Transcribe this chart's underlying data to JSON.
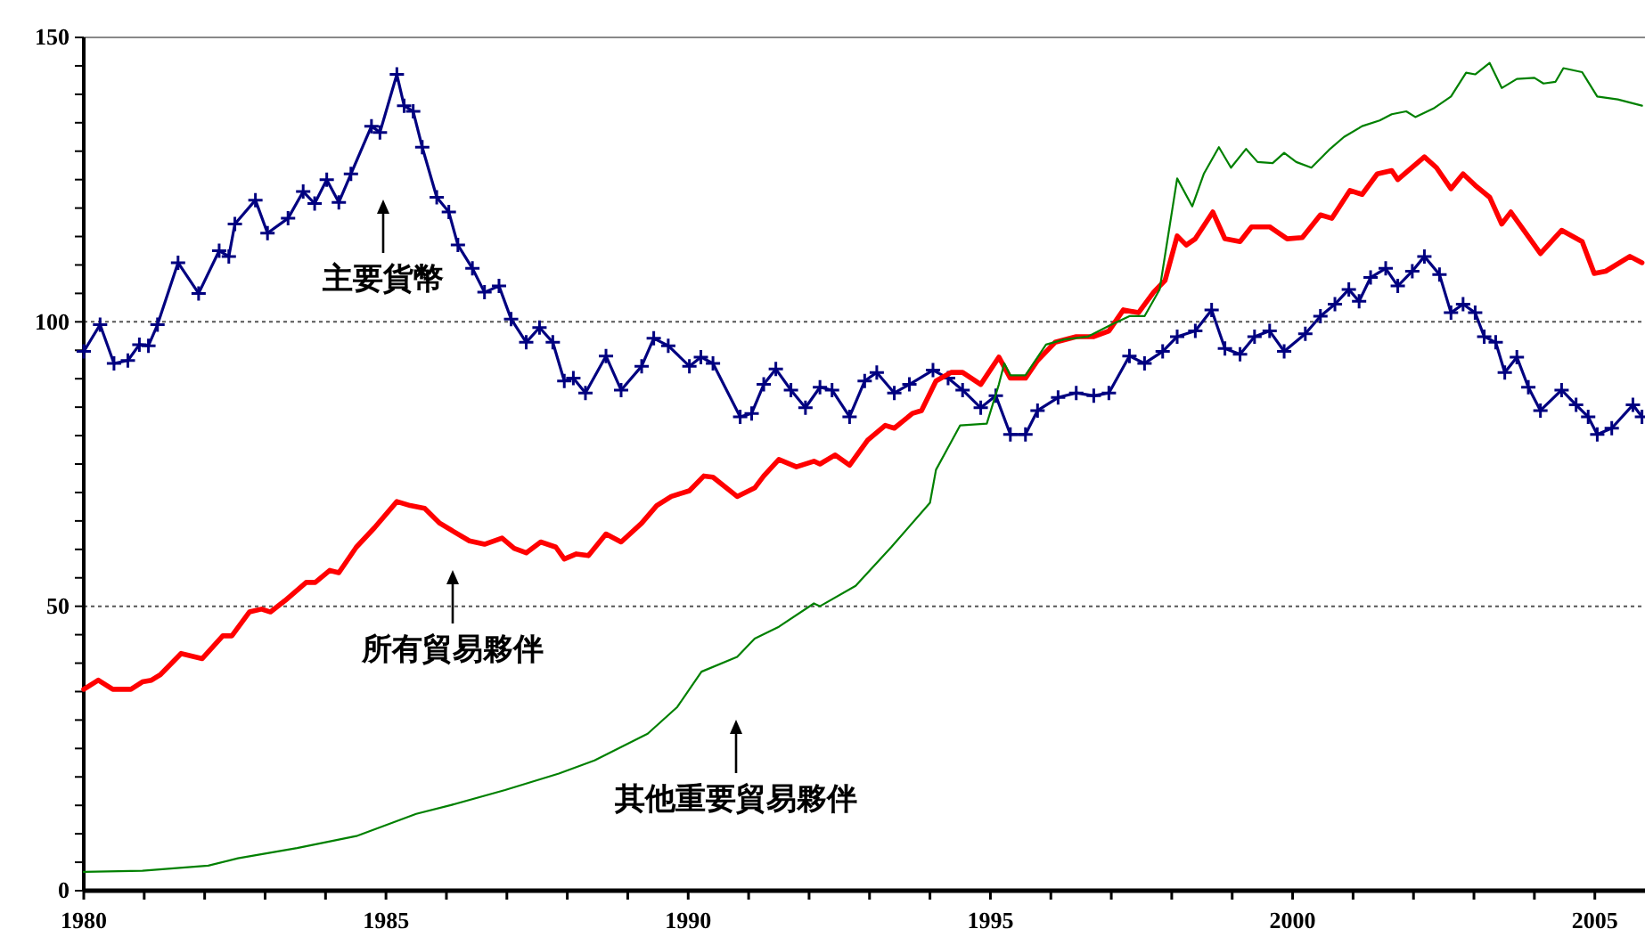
{
  "chart_data": {
    "type": "line",
    "xlim": [
      1980,
      2005.83
    ],
    "xticks": [
      1980,
      {
        "value": 1981,
        "label": null
      },
      {
        "value": 1982,
        "label": null
      },
      {
        "value": 1983,
        "label": null
      },
      {
        "value": 1984,
        "label": null
      },
      1985,
      {
        "value": 1986,
        "label": null
      },
      {
        "value": 1987,
        "label": null
      },
      {
        "value": 1988,
        "label": null
      },
      {
        "value": 1989,
        "label": null
      },
      1990,
      {
        "value": 1991,
        "label": null
      },
      {
        "value": 1992,
        "label": null
      },
      {
        "value": 1993,
        "label": null
      },
      {
        "value": 1994,
        "label": null
      },
      1995,
      {
        "value": 1996,
        "label": null
      },
      {
        "value": 1997,
        "label": null
      },
      {
        "value": 1998,
        "label": null
      },
      {
        "value": 1999,
        "label": null
      },
      2000,
      {
        "value": 2001,
        "label": null
      },
      {
        "value": 2002,
        "label": null
      },
      {
        "value": 2003,
        "label": null
      },
      {
        "value": 2004,
        "label": null
      },
      2005
    ],
    "ylim": [
      0,
      150
    ],
    "yticks": [
      0,
      {
        "value": 5,
        "label": null
      },
      {
        "value": 10,
        "label": null
      },
      {
        "value": 15,
        "label": null
      },
      {
        "value": 20,
        "label": null
      },
      {
        "value": 25,
        "label": null
      },
      {
        "value": 30,
        "label": null
      },
      {
        "value": 35,
        "label": null
      },
      {
        "value": 40,
        "label": null
      },
      {
        "value": 45,
        "label": null
      },
      50,
      {
        "value": 55,
        "label": null
      },
      {
        "value": 60,
        "label": null
      },
      {
        "value": 65,
        "label": null
      },
      {
        "value": 70,
        "label": null
      },
      {
        "value": 75,
        "label": null
      },
      {
        "value": 80,
        "label": null
      },
      {
        "value": 85,
        "label": null
      },
      {
        "value": 90,
        "label": null
      },
      {
        "value": 95,
        "label": null
      },
      100,
      {
        "value": 105,
        "label": null
      },
      {
        "value": 110,
        "label": null
      },
      {
        "value": 115,
        "label": null
      },
      {
        "value": 120,
        "label": null
      },
      {
        "value": 125,
        "label": null
      },
      {
        "value": 130,
        "label": null
      },
      {
        "value": 135,
        "label": null
      },
      {
        "value": 140,
        "label": null
      },
      {
        "value": 145,
        "label": null
      },
      150
    ],
    "grid": false,
    "ref_lines": [
      {
        "axis": "y",
        "value": 50,
        "line_style": "dotted",
        "color": "#555555"
      },
      {
        "axis": "y",
        "value": 100,
        "line_style": "dotted",
        "color": "#555555"
      }
    ],
    "series": [
      {
        "name": "主要貨幣",
        "color": "#000080",
        "marker": "cross",
        "x": [
          1980,
          1980.27,
          1980.5,
          1980.73,
          1980.92,
          1981.07,
          1981.22,
          1981.56,
          1981.9,
          1982.24,
          1982.4,
          1982.5,
          1982.84,
          1983.04,
          1983.38,
          1983.63,
          1983.82,
          1984.02,
          1984.22,
          1984.42,
          1984.76,
          1984.9,
          1985.18,
          1985.3,
          1985.45,
          1985.6,
          1985.84,
          1986.04,
          1986.19,
          1986.43,
          1986.63,
          1986.87,
          1987.07,
          1987.32,
          1987.54,
          1987.76,
          1987.95,
          1988.1,
          1988.3,
          1988.64,
          1988.89,
          1989.23,
          1989.43,
          1989.67,
          1990.02,
          1990.21,
          1990.41,
          1990.86,
          1991.05,
          1991.25,
          1991.45,
          1991.7,
          1991.94,
          1992.18,
          1992.38,
          1992.67,
          1992.92,
          1993.12,
          1993.41,
          1993.66,
          1994.05,
          1994.3,
          1994.54,
          1994.84,
          1995.09,
          1995.33,
          1995.58,
          1995.78,
          1996.12,
          1996.42,
          1996.71,
          1996.96,
          1997.3,
          1997.55,
          1997.85,
          1998.09,
          1998.39,
          1998.66,
          1998.88,
          1999.13,
          1999.37,
          1999.62,
          1999.86,
          2000.21,
          2000.46,
          2000.7,
          2000.93,
          2001.1,
          2001.29,
          2001.54,
          2001.74,
          2001.98,
          2002.18,
          2002.43,
          2002.62,
          2002.82,
          2003.02,
          2003.17,
          2003.36,
          2003.51,
          2003.71,
          2003.9,
          2004.1,
          2004.45,
          2004.69,
          2004.89,
          2005.04,
          2005.28,
          2005.63,
          2005.78
        ],
        "values": [
          94.8,
          99.5,
          92.7,
          93.2,
          96,
          95.8,
          99.5,
          110.4,
          105,
          112.5,
          111.5,
          117.2,
          121.4,
          115.6,
          118.2,
          122.9,
          120.8,
          125,
          121,
          126,
          134.4,
          133.3,
          143.5,
          138,
          137,
          130.7,
          121.9,
          119.3,
          113.5,
          109.4,
          105.2,
          106.3,
          100.5,
          96.4,
          99,
          96.4,
          89.6,
          90.1,
          87.5,
          94,
          88,
          92.2,
          97.1,
          95.8,
          92.2,
          93.8,
          92.7,
          83.3,
          83.9,
          89,
          91.7,
          88,
          84.9,
          88.5,
          88,
          83.3,
          89.6,
          91.1,
          87.5,
          89,
          91.5,
          90.1,
          88,
          84.9,
          87,
          80.2,
          80.2,
          84.4,
          86.7,
          87.5,
          87,
          87.5,
          94,
          92.7,
          94.8,
          97.4,
          98.4,
          102.1,
          95.3,
          94.3,
          97.4,
          98.4,
          94.8,
          97.9,
          101,
          103.1,
          105.7,
          103.6,
          107.8,
          109.4,
          106.3,
          108.9,
          111.5,
          108.3,
          101.6,
          103.1,
          101.6,
          97.4,
          96.4,
          91.1,
          93.8,
          88.5,
          84.4,
          88,
          85.4,
          83.3,
          80.2,
          81.3,
          85.4,
          83.3
        ]
      },
      {
        "name": "所有貿易夥伴",
        "color": "#ff0000",
        "marker": "none",
        "x": [
          1980,
          1980.24,
          1980.48,
          1980.78,
          1980.97,
          1981.12,
          1981.27,
          1981.61,
          1981.96,
          1982.3,
          1982.45,
          1982.74,
          1982.94,
          1983.09,
          1983.33,
          1983.68,
          1983.83,
          1984.07,
          1984.22,
          1984.51,
          1984.81,
          1985.18,
          1985.4,
          1985.64,
          1985.89,
          1986.14,
          1986.38,
          1986.63,
          1986.92,
          1987.12,
          1987.32,
          1987.56,
          1987.81,
          1987.95,
          1988.15,
          1988.35,
          1988.64,
          1988.89,
          1989.23,
          1989.48,
          1989.72,
          1990.02,
          1990.26,
          1990.41,
          1990.81,
          1991.1,
          1991.25,
          1991.5,
          1991.79,
          1992.08,
          1992.18,
          1992.43,
          1992.67,
          1992.97,
          1993.26,
          1993.41,
          1993.71,
          1993.86,
          1994.1,
          1994.35,
          1994.54,
          1994.84,
          1995.14,
          1995.33,
          1995.58,
          1995.78,
          1996.07,
          1996.42,
          1996.71,
          1996.96,
          1997.2,
          1997.45,
          1997.7,
          1997.89,
          1998.09,
          1998.24,
          1998.39,
          1998.68,
          1998.88,
          1999.13,
          1999.32,
          1999.62,
          1999.91,
          2000.16,
          2000.46,
          2000.65,
          2000.95,
          2001.15,
          2001.4,
          2001.64,
          2001.74,
          2002.18,
          2002.38,
          2002.62,
          2002.82,
          2003.02,
          2003.26,
          2003.46,
          2003.61,
          2004.1,
          2004.45,
          2004.79,
          2004.99,
          2005.18,
          2005.58,
          2005.78
        ],
        "values": [
          35.4,
          37,
          35.4,
          35.4,
          36.7,
          37,
          38,
          41.7,
          40.8,
          44.8,
          44.8,
          49,
          49.5,
          49,
          51,
          54.2,
          54.2,
          56.3,
          55.9,
          60.4,
          63.8,
          68.4,
          67.7,
          67.2,
          64.6,
          63,
          61.5,
          60.9,
          62,
          60.2,
          59.4,
          61.3,
          60.4,
          58.3,
          59.2,
          58.9,
          62.7,
          61.3,
          64.6,
          67.7,
          69.3,
          70.3,
          72.9,
          72.7,
          69.3,
          70.8,
          72.9,
          75.8,
          74.5,
          75.5,
          75,
          76.6,
          74.8,
          79.2,
          81.8,
          81.3,
          83.9,
          84.4,
          89.6,
          91.1,
          91.1,
          89,
          93.8,
          90.1,
          90.1,
          93.2,
          96.4,
          97.4,
          97.4,
          98.4,
          102.1,
          101.6,
          105.2,
          107.3,
          115.1,
          113.5,
          114.6,
          119.3,
          114.6,
          114.1,
          116.7,
          116.7,
          114.6,
          114.8,
          118.8,
          118.2,
          123.1,
          122.4,
          126,
          126.6,
          125,
          129,
          127.1,
          123.4,
          126,
          124,
          121.9,
          117.2,
          119.3,
          112,
          116.1,
          114.1,
          108.5,
          108.9,
          111.5,
          110.4
        ]
      },
      {
        "name": "其他重要貿易夥伴",
        "color": "#008000",
        "marker": "none",
        "x": [
          1980,
          1980.97,
          1982.06,
          1982.55,
          1983.53,
          1984.51,
          1985.5,
          1986.09,
          1986.97,
          1987.86,
          1988.45,
          1989.33,
          1989.82,
          1990.22,
          1990.81,
          1991.1,
          1991.5,
          1992.08,
          1992.18,
          1992.77,
          1993.36,
          1994,
          1994.1,
          1994.5,
          1994.94,
          1995.14,
          1995.23,
          1995.33,
          1995.58,
          1995.92,
          1996.22,
          1996.61,
          1997,
          1997.3,
          1997.55,
          1997.8,
          1998.09,
          1998.34,
          1998.53,
          1998.78,
          1998.98,
          1999.23,
          1999.42,
          1999.67,
          1999.86,
          2000.06,
          2000.31,
          2000.6,
          2000.85,
          2001.15,
          2001.44,
          2001.64,
          2001.88,
          2002.03,
          2002.33,
          2002.62,
          2002.87,
          2003.02,
          2003.26,
          2003.46,
          2003.71,
          2004,
          2004.15,
          2004.35,
          2004.48,
          2004.79,
          2005.04,
          2005.38,
          2005.78
        ],
        "values": [
          3.3,
          3.5,
          4.4,
          5.7,
          7.5,
          9.6,
          13.5,
          15.1,
          17.7,
          20.6,
          22.9,
          27.6,
          32.3,
          38.5,
          41.1,
          44.3,
          46.4,
          50.5,
          50,
          53.6,
          60.4,
          68.2,
          74,
          81.8,
          82.1,
          89,
          92.7,
          90.6,
          90.6,
          96,
          96.9,
          97.4,
          99.5,
          101,
          101,
          105.7,
          125.2,
          120.3,
          126,
          130.7,
          127.1,
          130.4,
          128.1,
          127.9,
          129.7,
          128.1,
          127.1,
          130.2,
          132.5,
          134.4,
          135.4,
          136.5,
          137,
          136,
          137.5,
          139.6,
          143.8,
          143.5,
          145.5,
          141.1,
          142.7,
          142.9,
          141.9,
          142.2,
          144.6,
          143.9,
          139.6,
          139.1,
          138
        ]
      }
    ]
  }
}
